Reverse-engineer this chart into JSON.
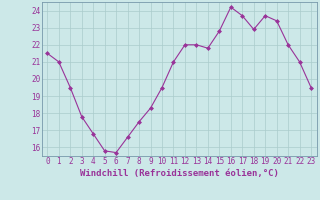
{
  "x": [
    0,
    1,
    2,
    3,
    4,
    5,
    6,
    7,
    8,
    9,
    10,
    11,
    12,
    13,
    14,
    15,
    16,
    17,
    18,
    19,
    20,
    21,
    22,
    23
  ],
  "y": [
    21.5,
    21.0,
    19.5,
    17.8,
    16.8,
    15.8,
    15.7,
    16.6,
    17.5,
    18.3,
    19.5,
    21.0,
    22.0,
    22.0,
    21.8,
    22.8,
    24.2,
    23.7,
    22.9,
    23.7,
    23.4,
    22.0,
    21.0,
    19.5
  ],
  "line_color": "#993399",
  "marker": "D",
  "marker_size": 2,
  "bg_color": "#cce8e8",
  "grid_color": "#aacccc",
  "xlabel": "Windchill (Refroidissement éolien,°C)",
  "xlim": [
    -0.5,
    23.5
  ],
  "ylim": [
    15.5,
    24.5
  ],
  "yticks": [
    16,
    17,
    18,
    19,
    20,
    21,
    22,
    23,
    24
  ],
  "xticks": [
    0,
    1,
    2,
    3,
    4,
    5,
    6,
    7,
    8,
    9,
    10,
    11,
    12,
    13,
    14,
    15,
    16,
    17,
    18,
    19,
    20,
    21,
    22,
    23
  ],
  "tick_label_size": 5.5,
  "xlabel_size": 6.5,
  "xlabel_color": "#993399",
  "tick_color": "#993399",
  "spine_color": "#7799aa"
}
